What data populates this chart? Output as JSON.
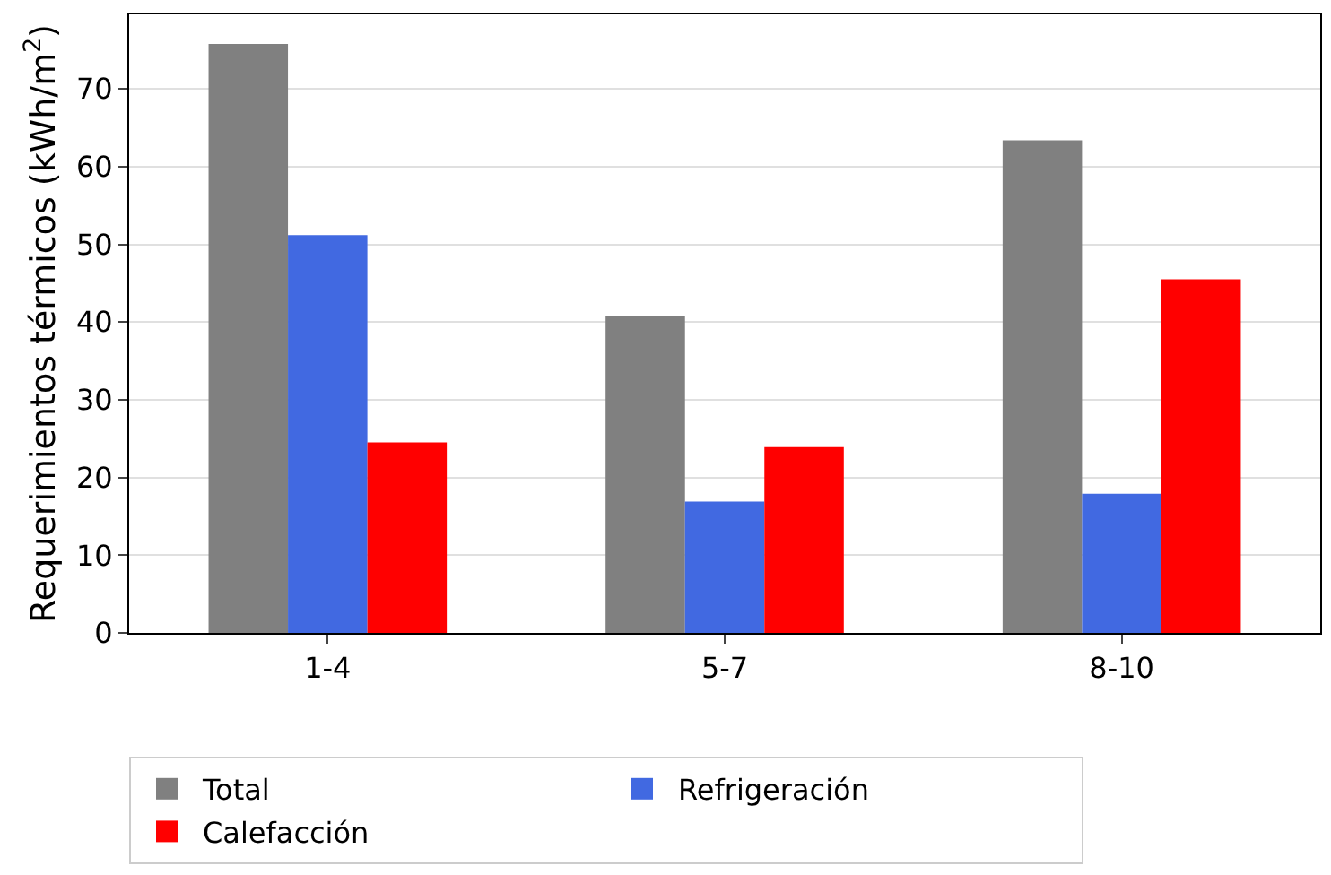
{
  "chart_data": {
    "type": "bar",
    "ylabel": "Requerimientos térmicos (kWh/m$^{2}$)",
    "categories": [
      "1-4",
      "5-7",
      "8-10"
    ],
    "series": [
      {
        "name": "Total",
        "color": "#808080",
        "values": [
          75.8,
          40.8,
          63.4
        ]
      },
      {
        "name": "Refrigeración",
        "color": "#4169e1",
        "values": [
          51.2,
          16.9,
          17.9
        ]
      },
      {
        "name": "Calefacción",
        "color": "#ff0000",
        "values": [
          24.5,
          23.9,
          45.5
        ]
      }
    ],
    "ylim": [
      0,
      79.6
    ],
    "yticks": [
      0,
      10,
      20,
      30,
      40,
      50,
      60,
      70
    ],
    "grid": "y",
    "legend": "bottom"
  }
}
